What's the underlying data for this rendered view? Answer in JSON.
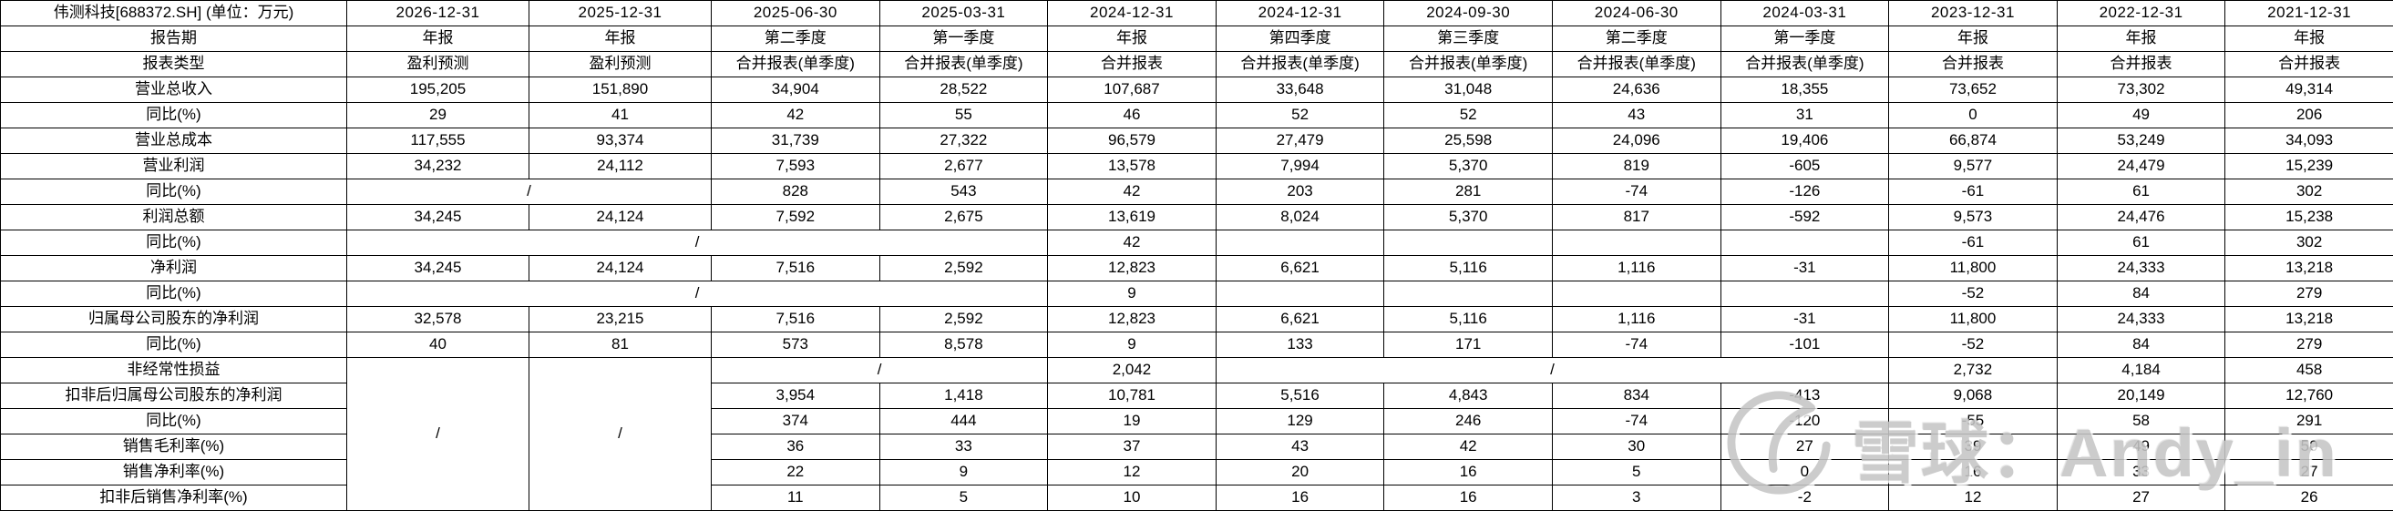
{
  "table": {
    "title": "伟测科技[688372.SH] (单位：万元)",
    "report_period_label": "报告期",
    "report_type_label": "报表类型",
    "columns": [
      {
        "date": "2026-12-31",
        "period": "年报",
        "type": "盈利预测"
      },
      {
        "date": "2025-12-31",
        "period": "年报",
        "type": "盈利预测"
      },
      {
        "date": "2025-06-30",
        "period": "第二季度",
        "type": "合并报表(单季度)"
      },
      {
        "date": "2025-03-31",
        "period": "第一季度",
        "type": "合并报表(单季度)"
      },
      {
        "date": "2024-12-31",
        "period": "年报",
        "type": "合并报表"
      },
      {
        "date": "2024-12-31",
        "period": "第四季度",
        "type": "合并报表(单季度)"
      },
      {
        "date": "2024-09-30",
        "period": "第三季度",
        "type": "合并报表(单季度)"
      },
      {
        "date": "2024-06-30",
        "period": "第二季度",
        "type": "合并报表(单季度)"
      },
      {
        "date": "2024-03-31",
        "period": "第一季度",
        "type": "合并报表(单季度)"
      },
      {
        "date": "2023-12-31",
        "period": "年报",
        "type": "合并报表"
      },
      {
        "date": "2022-12-31",
        "period": "年报",
        "type": "合并报表"
      },
      {
        "date": "2021-12-31",
        "period": "年报",
        "type": "合并报表"
      }
    ],
    "rows": [
      {
        "label": "营业总收入",
        "indent": 1,
        "style": "normal",
        "cells": [
          "195,205",
          "151,890",
          "34,904",
          "28,522",
          "107,687",
          "33,648",
          "31,048",
          "24,636",
          "18,355",
          "73,652",
          "73,302",
          "49,314"
        ]
      },
      {
        "label": "同比(%)",
        "indent": 2,
        "style": "normal",
        "cells": [
          "29",
          "41",
          "42",
          "55",
          "46",
          "52",
          "52",
          "43",
          "31",
          "0",
          "49",
          "206"
        ]
      },
      {
        "label": "营业总成本",
        "indent": 1,
        "style": "normal",
        "cells": [
          "117,555",
          "93,374",
          "31,739",
          "27,322",
          "96,579",
          "27,479",
          "25,598",
          "24,096",
          "19,406",
          "66,874",
          "53,249",
          "34,093"
        ]
      },
      {
        "label": "营业利润",
        "indent": 1,
        "style": "normal",
        "cells": [
          "34,232",
          "24,112",
          "7,593",
          "2,677",
          "13,578",
          "7,994",
          "5,370",
          "819",
          "-605",
          "9,577",
          "24,479",
          "15,239"
        ]
      },
      {
        "label": "同比(%)",
        "indent": 2,
        "style": "normal",
        "cells": [
          {
            "t": "/",
            "cs": 2
          },
          "828",
          "543",
          "42",
          "203",
          "281",
          "-74",
          "-126",
          "-61",
          "61",
          "302"
        ]
      },
      {
        "label": "利润总额",
        "indent": 1,
        "style": "normal",
        "cells": [
          "34,245",
          "24,124",
          "7,592",
          "2,675",
          "13,619",
          "8,024",
          "5,370",
          "817",
          "-592",
          "9,573",
          "24,476",
          "15,238"
        ]
      },
      {
        "label": "同比(%)",
        "indent": 2,
        "style": "normal",
        "cells": [
          {
            "t": "/",
            "cs": 4
          },
          "42",
          "",
          "",
          "",
          "",
          "-61",
          "61",
          "302"
        ]
      },
      {
        "label": "净利润",
        "indent": 1,
        "style": "normal",
        "cells": [
          "34,245",
          "24,124",
          "7,516",
          "2,592",
          "12,823",
          "6,621",
          "5,116",
          "1,116",
          "-31",
          "11,800",
          "24,333",
          "13,218"
        ]
      },
      {
        "label": "同比(%)",
        "indent": 2,
        "style": "normal",
        "cells": [
          {
            "t": "/",
            "cs": 4
          },
          "9",
          "",
          "",
          "",
          "",
          "-52",
          "84",
          "279"
        ]
      },
      {
        "label": "归属母公司股东的净利润",
        "indent": 1,
        "style": "normal",
        "cells": [
          "32,578",
          "23,215",
          "7,516",
          "2,592",
          "12,823",
          "6,621",
          "5,116",
          "1,116",
          "-31",
          "11,800",
          "24,333",
          "13,218"
        ]
      },
      {
        "label": "同比(%)",
        "indent": 2,
        "style": "normal",
        "cells": [
          "40",
          "81",
          "573",
          "8,578",
          "9",
          "133",
          "171",
          "-74",
          "-101",
          "-52",
          "84",
          "279"
        ]
      },
      {
        "label": "非经常性损益",
        "indent": 1,
        "style": "normal",
        "cells": [
          {
            "t": "/",
            "rs": 6
          },
          {
            "t": "/",
            "rs": 6
          },
          {
            "t": "/",
            "cs": 2
          },
          "2,042",
          {
            "t": "/",
            "cs": 4
          },
          "2,732",
          "4,184",
          "458"
        ]
      },
      {
        "label": "扣非后归属母公司股东的净利润",
        "indent": 1,
        "style": "normal",
        "cells": [
          "3,954",
          "1,418",
          "10,781",
          "5,516",
          "4,843",
          "834",
          "-413",
          "9,068",
          "20,149",
          "12,760"
        ]
      },
      {
        "label": "同比(%)",
        "indent": 2,
        "style": "normal",
        "cells": [
          "374",
          "444",
          "19",
          "129",
          "246",
          "-74",
          "-120",
          "-55",
          "58",
          "291"
        ]
      },
      {
        "label": "销售毛利率(%)",
        "indent": 1,
        "style": "red",
        "cells": [
          "36",
          "33",
          "37",
          "43",
          "42",
          "30",
          "27",
          "39",
          "49",
          "50"
        ]
      },
      {
        "label": "销售净利率(%)",
        "indent": 1,
        "style": "red",
        "cells": [
          "22",
          "9",
          "12",
          "20",
          "16",
          "5",
          "0",
          "16",
          "33",
          "27"
        ]
      },
      {
        "label": "扣非后销售净利率(%)",
        "indent": 1,
        "style": "bold",
        "cells": [
          "11",
          "5",
          "10",
          "16",
          "16",
          "3",
          "-2",
          "12",
          "27",
          "26"
        ]
      }
    ]
  },
  "watermark": {
    "text": "雪球：Andy_in",
    "logo": "xueqiu-snowball-icon"
  },
  "colors": {
    "highlight_red": "#ff0000",
    "grid_black": "#000000",
    "watermark_gray": "#c6c6c6",
    "background": "#ffffff"
  }
}
